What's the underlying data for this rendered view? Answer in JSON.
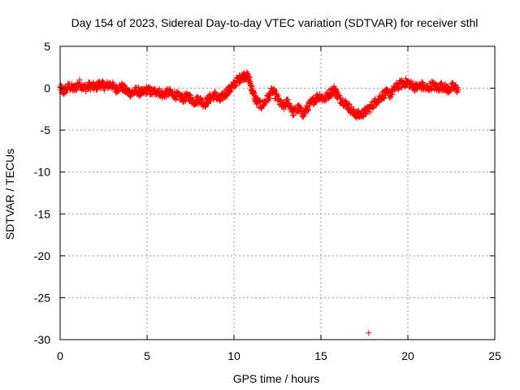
{
  "chart_data": {
    "type": "scatter",
    "title": "Day 154 of 2023, Sidereal Day-to-day VTEC variation (SDTVAR) for receiver sthl",
    "xlabel": "GPS time / hours",
    "ylabel": "SDTVAR / TECUs",
    "xlim": [
      0,
      25
    ],
    "ylim": [
      -30,
      5
    ],
    "x_ticks": [
      0,
      5,
      10,
      15,
      20,
      25
    ],
    "y_ticks": [
      5,
      0,
      -5,
      -10,
      -15,
      -20,
      -25,
      -30
    ],
    "grid": true,
    "marker": "plus",
    "color": "#ff0000",
    "series": [
      {
        "name": "SDTVAR",
        "trace": [
          [
            0.0,
            0.0
          ],
          [
            0.2,
            -0.4
          ],
          [
            0.5,
            0.2
          ],
          [
            0.8,
            -0.1
          ],
          [
            1.1,
            0.6
          ],
          [
            1.4,
            0.0
          ],
          [
            1.7,
            0.3
          ],
          [
            2.0,
            0.1
          ],
          [
            2.3,
            0.5
          ],
          [
            2.6,
            0.2
          ],
          [
            2.9,
            0.5
          ],
          [
            3.2,
            -0.1
          ],
          [
            3.5,
            0.2
          ],
          [
            3.8,
            -0.3
          ],
          [
            4.1,
            -0.6
          ],
          [
            4.4,
            -0.3
          ],
          [
            4.7,
            -0.6
          ],
          [
            5.0,
            -0.2
          ],
          [
            5.3,
            -0.5
          ],
          [
            5.6,
            -0.3
          ],
          [
            5.9,
            -0.8
          ],
          [
            6.2,
            -0.5
          ],
          [
            6.5,
            -0.7
          ],
          [
            6.8,
            -1.0
          ],
          [
            7.1,
            -1.2
          ],
          [
            7.4,
            -1.0
          ],
          [
            7.7,
            -1.6
          ],
          [
            8.0,
            -1.3
          ],
          [
            8.3,
            -1.9
          ],
          [
            8.6,
            -1.2
          ],
          [
            8.9,
            -0.8
          ],
          [
            9.2,
            -1.4
          ],
          [
            9.5,
            -0.6
          ],
          [
            9.8,
            -0.1
          ],
          [
            10.1,
            0.7
          ],
          [
            10.4,
            1.3
          ],
          [
            10.7,
            1.6
          ],
          [
            10.9,
            0.9
          ],
          [
            11.1,
            -0.6
          ],
          [
            11.3,
            -1.6
          ],
          [
            11.6,
            -2.1
          ],
          [
            11.9,
            -1.3
          ],
          [
            12.2,
            -0.3
          ],
          [
            12.5,
            -1.2
          ],
          [
            12.8,
            -2.3
          ],
          [
            13.1,
            -1.6
          ],
          [
            13.4,
            -2.9
          ],
          [
            13.7,
            -2.4
          ],
          [
            14.0,
            -3.1
          ],
          [
            14.3,
            -2.1
          ],
          [
            14.6,
            -1.4
          ],
          [
            14.9,
            -0.9
          ],
          [
            15.2,
            -1.3
          ],
          [
            15.5,
            -0.6
          ],
          [
            15.8,
            -0.1
          ],
          [
            16.0,
            -1.1
          ],
          [
            16.3,
            -1.6
          ],
          [
            16.6,
            -2.2
          ],
          [
            16.9,
            -3.0
          ],
          [
            17.2,
            -3.2
          ],
          [
            17.5,
            -2.9
          ],
          [
            17.8,
            -2.4
          ],
          [
            18.1,
            -1.7
          ],
          [
            18.4,
            -1.1
          ],
          [
            18.7,
            -0.6
          ],
          [
            19.0,
            -0.7
          ],
          [
            19.3,
            0.1
          ],
          [
            19.6,
            0.5
          ],
          [
            19.9,
            0.7
          ],
          [
            20.2,
            0.4
          ],
          [
            20.5,
            0.1
          ],
          [
            20.8,
            0.3
          ],
          [
            21.1,
            -0.1
          ],
          [
            21.4,
            0.4
          ],
          [
            21.7,
            0.0
          ],
          [
            22.0,
            0.3
          ],
          [
            22.3,
            -0.2
          ],
          [
            22.6,
            0.2
          ],
          [
            22.9,
            -0.2
          ]
        ],
        "outliers": [
          [
            17.75,
            -29.2
          ]
        ]
      }
    ]
  }
}
